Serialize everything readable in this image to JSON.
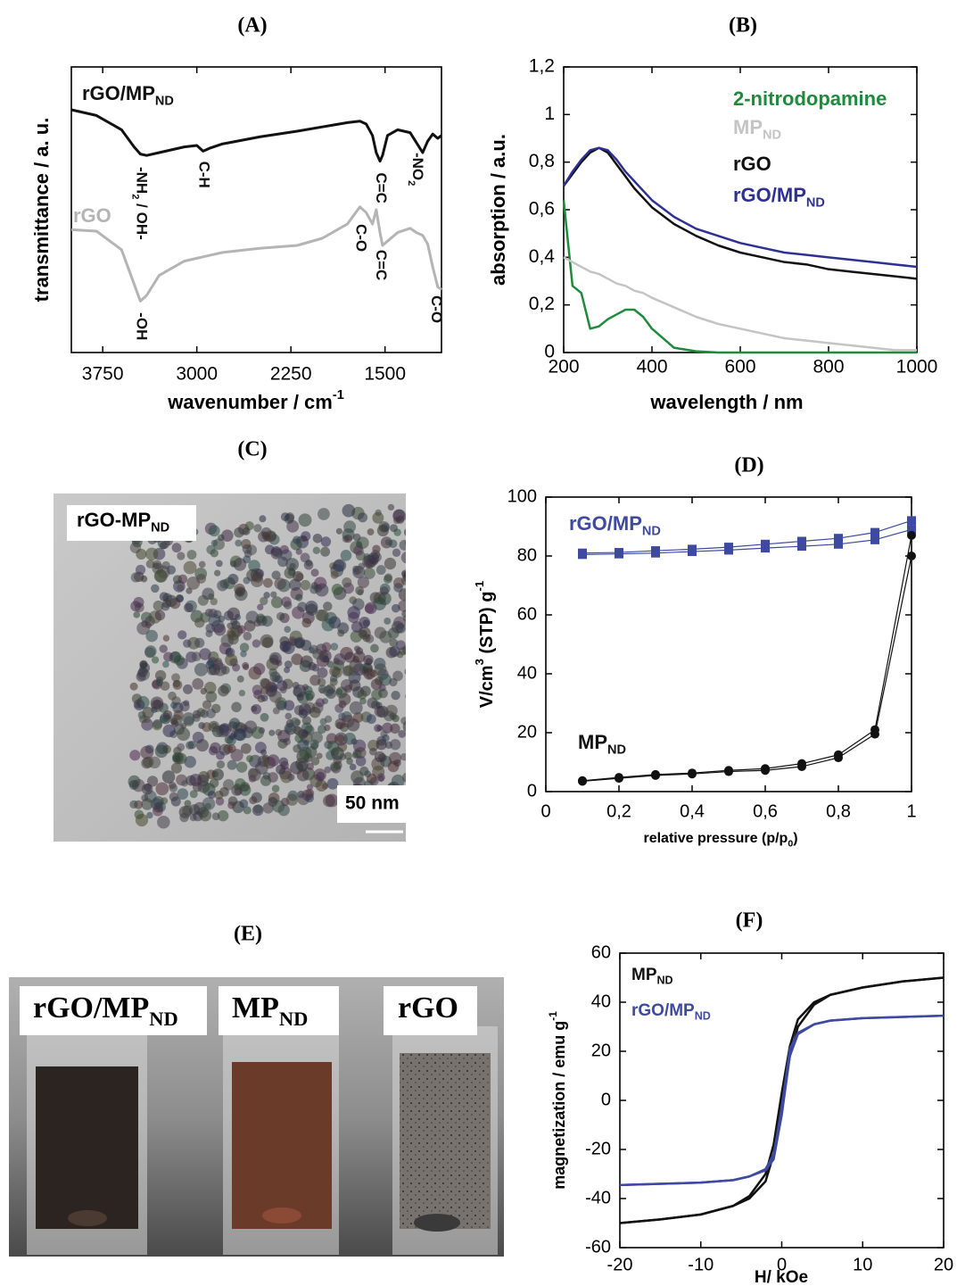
{
  "chart_data": [
    {
      "type": "line",
      "title": "(A)",
      "ylabel": "transmittance / a. u.",
      "xlabel": [
        {
          "text": "wavenumber / cm"
        },
        {
          "text": "-1",
          "pos": "sup"
        }
      ],
      "xlim": [
        4000,
        1050
      ],
      "ylim": [
        0,
        10
      ],
      "xticks": [
        3750,
        3000,
        2250,
        1500
      ],
      "x": [
        4000,
        3800,
        3600,
        3500,
        3450,
        3400,
        3300,
        3100,
        3000,
        2950,
        2900,
        2800,
        2500,
        2200,
        2000,
        1800,
        1700,
        1650,
        1600,
        1570,
        1540,
        1520,
        1480,
        1400,
        1300,
        1250,
        1200,
        1160,
        1120,
        1080,
        1050
      ],
      "series": [
        {
          "name": "rGO/MP",
          "name_sub": "ND",
          "color": "#111111",
          "values": [
            8.5,
            8.3,
            7.8,
            7.2,
            6.95,
            6.9,
            7.0,
            7.2,
            7.25,
            7.05,
            7.15,
            7.3,
            7.55,
            7.75,
            7.9,
            8.05,
            8.1,
            8.0,
            7.6,
            7.0,
            6.7,
            6.9,
            7.6,
            7.8,
            7.7,
            7.35,
            7.0,
            7.4,
            7.65,
            7.5,
            7.6
          ]
        },
        {
          "name": "rGO",
          "color": "#b4b4b4",
          "values": [
            4.3,
            4.25,
            3.6,
            2.4,
            1.8,
            2.0,
            2.7,
            3.2,
            3.3,
            3.35,
            3.4,
            3.5,
            3.65,
            3.75,
            4.0,
            4.5,
            5.1,
            4.9,
            4.5,
            5.0,
            4.2,
            3.75,
            3.9,
            4.2,
            4.35,
            4.2,
            4.1,
            3.8,
            3.0,
            2.3,
            2.2
          ]
        }
      ],
      "annotations": [
        {
          "text": [
            {
              "text": "-NH"
            },
            {
              "text": "2",
              "pos": "sub"
            },
            {
              "text": " / OH-"
            }
          ],
          "x": 3450,
          "y": 6.5,
          "color": "#111111"
        },
        {
          "text": "C-H",
          "x": 2950,
          "y": 6.7,
          "color": "#111111"
        },
        {
          "text": "C=C",
          "x": 1540,
          "y": 6.3,
          "color": "#111111"
        },
        {
          "text": [
            {
              "text": "-NO"
            },
            {
              "text": "2",
              "pos": "sub"
            }
          ],
          "x": 1250,
          "y": 7.0,
          "color": "#111111"
        },
        {
          "text": "-OH",
          "x": 3450,
          "y": 1.4,
          "color": "#111111"
        },
        {
          "text": "C-O",
          "x": 1700,
          "y": 4.5,
          "color": "#111111"
        },
        {
          "text": "C=C",
          "x": 1540,
          "y": 3.6,
          "color": "#111111"
        },
        {
          "text": "C-O",
          "x": 1100,
          "y": 2.0,
          "color": "#111111"
        }
      ]
    },
    {
      "type": "line",
      "title": "(B)",
      "ylabel": "absorption / a.u.",
      "xlabel": "wavelength / nm",
      "xlim": [
        200,
        1000
      ],
      "ylim": [
        0,
        1.2
      ],
      "xticks": [
        200,
        400,
        600,
        800,
        1000
      ],
      "yticks": [
        0,
        {
          "value": 0.2,
          "label": "0,2"
        },
        {
          "value": 0.4,
          "label": "0,4"
        },
        {
          "value": 0.6,
          "label": "0,6"
        },
        {
          "value": 0.8,
          "label": "0,8"
        },
        1,
        {
          "value": 1.2,
          "label": "1,2"
        }
      ],
      "x": [
        200,
        220,
        240,
        260,
        280,
        300,
        320,
        340,
        360,
        380,
        400,
        450,
        500,
        550,
        600,
        650,
        700,
        750,
        800,
        850,
        900,
        950,
        1000
      ],
      "series": [
        {
          "name": "2-nitrodopamine",
          "color": "#1e8a3c",
          "values": [
            0.64,
            0.28,
            0.25,
            0.1,
            0.11,
            0.14,
            0.16,
            0.18,
            0.18,
            0.15,
            0.1,
            0.02,
            0.005,
            0,
            0,
            0,
            0,
            0,
            0,
            0,
            0,
            0,
            0
          ]
        },
        {
          "name": "MP",
          "name_sub": "ND",
          "color": "#c4c4c4",
          "values": [
            0.4,
            0.38,
            0.36,
            0.34,
            0.33,
            0.31,
            0.29,
            0.28,
            0.26,
            0.25,
            0.23,
            0.19,
            0.15,
            0.12,
            0.1,
            0.08,
            0.06,
            0.05,
            0.04,
            0.03,
            0.02,
            0.01,
            0.01
          ]
        },
        {
          "name": "rGO",
          "color": "#111111",
          "values": [
            0.7,
            0.75,
            0.8,
            0.84,
            0.86,
            0.84,
            0.79,
            0.74,
            0.69,
            0.65,
            0.61,
            0.54,
            0.49,
            0.45,
            0.42,
            0.4,
            0.38,
            0.37,
            0.35,
            0.34,
            0.33,
            0.32,
            0.31
          ]
        },
        {
          "name": "rGO/MP",
          "name_sub": "ND",
          "color": "#2e3192",
          "values": [
            0.7,
            0.76,
            0.81,
            0.85,
            0.86,
            0.85,
            0.81,
            0.76,
            0.72,
            0.68,
            0.64,
            0.57,
            0.52,
            0.49,
            0.46,
            0.44,
            0.42,
            0.41,
            0.4,
            0.39,
            0.38,
            0.37,
            0.36
          ]
        }
      ]
    },
    {
      "type": "line",
      "title": "(D)",
      "ylabel": [
        {
          "text": "V/cm"
        },
        {
          "text": "3",
          "pos": "sup"
        },
        {
          "text": " (STP) g"
        },
        {
          "text": "-1",
          "pos": "sup"
        }
      ],
      "xlabel": [
        {
          "text": "relative pressure (p/p"
        },
        {
          "text": "0",
          "pos": "sub"
        },
        {
          "text": ")"
        }
      ],
      "xlim": [
        0,
        1
      ],
      "ylim": [
        0,
        100
      ],
      "xticks": [
        0,
        {
          "value": 0.2,
          "label": "0,2"
        },
        {
          "value": 0.4,
          "label": "0,4"
        },
        {
          "value": 0.6,
          "label": "0,6"
        },
        {
          "value": 0.8,
          "label": "0,8"
        },
        1
      ],
      "yticks": [
        0,
        20,
        40,
        60,
        80,
        100
      ],
      "x": [
        0.1,
        0.2,
        0.3,
        0.4,
        0.5,
        0.6,
        0.7,
        0.8,
        0.9,
        1.0
      ],
      "series": [
        {
          "name": "rGO/MP",
          "name_sub": "ND",
          "color": "#3d4aa0",
          "marker": "square",
          "values": [
            80.5,
            80.7,
            81,
            81.5,
            82,
            82.7,
            83.3,
            84,
            85.5,
            89
          ],
          "values2": [
            81,
            81.2,
            81.8,
            82.3,
            83,
            84,
            85,
            86,
            88,
            92
          ]
        },
        {
          "name": "MP",
          "name_sub": "ND",
          "color": "#111111",
          "marker": "circle",
          "values": [
            3.5,
            4.5,
            5.5,
            6,
            6.8,
            7.2,
            8.5,
            11.5,
            19.5,
            80
          ],
          "values2": [
            3.7,
            4.8,
            5.8,
            6.3,
            7.2,
            7.8,
            9.5,
            12.5,
            21,
            87
          ]
        }
      ]
    },
    {
      "type": "line",
      "title": "(F)",
      "ylabel": [
        {
          "text": "magnetization / emu g"
        },
        {
          "text": "-1",
          "pos": "sup"
        }
      ],
      "xlabel": "H/ kOe",
      "xlim": [
        -20,
        20
      ],
      "ylim": [
        -60,
        60
      ],
      "xticks": [
        -20,
        -10,
        0,
        10,
        20
      ],
      "yticks": [
        -60,
        -40,
        -20,
        0,
        20,
        40,
        60
      ],
      "x": [
        -20,
        -15,
        -10,
        -6,
        -4,
        -2,
        -1,
        0,
        1,
        2,
        4,
        6,
        10,
        15,
        20
      ],
      "series": [
        {
          "name": "MP",
          "name_sub": "ND",
          "color": "#111111",
          "values": [
            -50,
            -48.5,
            -46.5,
            -43,
            -39,
            -30,
            -18,
            3,
            22,
            33,
            40,
            43,
            46,
            48.5,
            50
          ],
          "values2": [
            -50,
            -48.5,
            -46.5,
            -43,
            -40,
            -33,
            -22,
            -3,
            18,
            30,
            39,
            43,
            46,
            48.5,
            50
          ]
        },
        {
          "name": "rGO/MP",
          "name_sub": "ND",
          "color": "#3d4aa0",
          "values": [
            -34.5,
            -34,
            -33.5,
            -32.5,
            -31,
            -28,
            -22,
            -3,
            21,
            27.5,
            31,
            32.5,
            33.5,
            34,
            34.5
          ],
          "values2": [
            -34.5,
            -34,
            -33.5,
            -32.5,
            -31,
            -28.5,
            -24,
            -6,
            18,
            27,
            31,
            32.5,
            33.5,
            34,
            34.5
          ]
        }
      ]
    }
  ],
  "images": [
    {
      "title": "(C)",
      "label": [
        {
          "text": "rGO-MP"
        },
        {
          "text": "ND",
          "pos": "sub"
        }
      ],
      "scale_bar": "50 nm"
    },
    {
      "title": "(E)",
      "labels": [
        [
          {
            "text": "rGO/MP"
          },
          {
            "text": "ND",
            "pos": "sub"
          }
        ],
        [
          {
            "text": "MP"
          },
          {
            "text": "ND",
            "pos": "sub"
          }
        ],
        "rGO"
      ]
    }
  ]
}
